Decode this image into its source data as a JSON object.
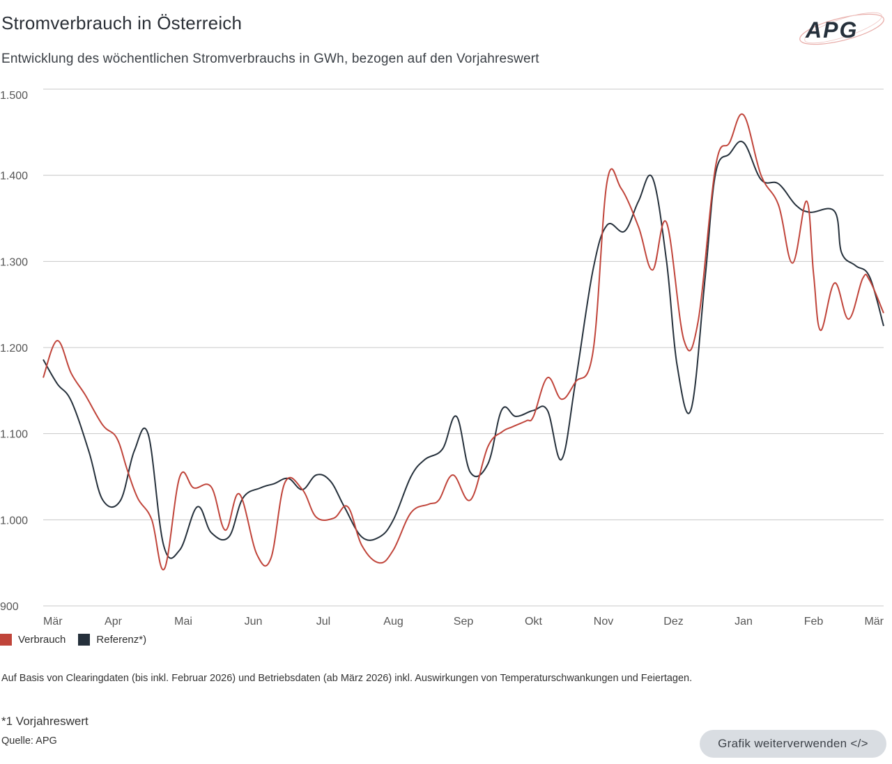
{
  "header": {
    "title": "Stromverbrauch in Österreich",
    "subtitle": "Entwicklung des wöchentlichen Stromverbrauchs in GWh, bezogen auf den Vorjahreswert",
    "logo_text": "APG"
  },
  "colors": {
    "verbrauch": "#c0443a",
    "referenz": "#25303b",
    "grid": "#c8c8c8",
    "axis_text": "#555555"
  },
  "chart_data": {
    "type": "line",
    "title": "Stromverbrauch in Österreich",
    "ylabel": "",
    "xlabel": "",
    "ylim": [
      900,
      1500
    ],
    "yticks": [
      900,
      1000,
      1100,
      1200,
      1300,
      1400,
      1500
    ],
    "ytick_labels": [
      "900",
      "1.000",
      "1.100",
      "1.200",
      "1.300",
      "1.400",
      "1.500"
    ],
    "x_range": [
      0,
      12
    ],
    "xticks": [
      0,
      1,
      2,
      3,
      4,
      5,
      6,
      7,
      8,
      9,
      10,
      11,
      12
    ],
    "xtick_labels": [
      "Mär",
      "Apr",
      "Mai",
      "Jun",
      "Jul",
      "Aug",
      "Sep",
      "Okt",
      "Nov",
      "Dez",
      "Jan",
      "Feb",
      "Mär"
    ],
    "grid": true,
    "legend_position": "bottom-left",
    "series": [
      {
        "name": "Verbrauch",
        "color": "#c0443a",
        "points": [
          [
            0.0,
            1165
          ],
          [
            0.2,
            1208
          ],
          [
            0.4,
            1170
          ],
          [
            0.6,
            1145
          ],
          [
            0.85,
            1110
          ],
          [
            1.05,
            1095
          ],
          [
            1.2,
            1058
          ],
          [
            1.35,
            1025
          ],
          [
            1.55,
            1000
          ],
          [
            1.73,
            943
          ],
          [
            1.95,
            1050
          ],
          [
            2.15,
            1037
          ],
          [
            2.4,
            1038
          ],
          [
            2.6,
            988
          ],
          [
            2.8,
            1030
          ],
          [
            3.05,
            960
          ],
          [
            3.25,
            955
          ],
          [
            3.45,
            1043
          ],
          [
            3.7,
            1035
          ],
          [
            3.9,
            1003
          ],
          [
            4.15,
            1002
          ],
          [
            4.35,
            1015
          ],
          [
            4.55,
            970
          ],
          [
            4.8,
            950
          ],
          [
            5.0,
            965
          ],
          [
            5.25,
            1008
          ],
          [
            5.5,
            1018
          ],
          [
            5.65,
            1023
          ],
          [
            5.85,
            1052
          ],
          [
            6.1,
            1023
          ],
          [
            6.35,
            1085
          ],
          [
            6.55,
            1102
          ],
          [
            6.7,
            1108
          ],
          [
            6.9,
            1115
          ],
          [
            7.0,
            1120
          ],
          [
            7.2,
            1165
          ],
          [
            7.4,
            1140
          ],
          [
            7.6,
            1160
          ],
          [
            7.85,
            1195
          ],
          [
            8.05,
            1392
          ],
          [
            8.25,
            1385
          ],
          [
            8.5,
            1340
          ],
          [
            8.7,
            1290
          ],
          [
            8.9,
            1345
          ],
          [
            9.15,
            1208
          ],
          [
            9.35,
            1230
          ],
          [
            9.6,
            1410
          ],
          [
            9.8,
            1438
          ],
          [
            10.0,
            1470
          ],
          [
            10.25,
            1400
          ],
          [
            10.5,
            1365
          ],
          [
            10.7,
            1298
          ],
          [
            10.9,
            1370
          ],
          [
            11.0,
            1285
          ],
          [
            11.1,
            1220
          ],
          [
            11.3,
            1275
          ],
          [
            11.5,
            1233
          ],
          [
            11.7,
            1280
          ],
          [
            11.8,
            1278
          ],
          [
            12.0,
            1240
          ]
        ]
      },
      {
        "name": "Referenz*)",
        "color": "#25303b",
        "points": [
          [
            0.0,
            1186
          ],
          [
            0.2,
            1158
          ],
          [
            0.4,
            1138
          ],
          [
            0.65,
            1080
          ],
          [
            0.85,
            1023
          ],
          [
            1.1,
            1022
          ],
          [
            1.3,
            1080
          ],
          [
            1.5,
            1099
          ],
          [
            1.72,
            970
          ],
          [
            1.95,
            965
          ],
          [
            2.2,
            1015
          ],
          [
            2.4,
            985
          ],
          [
            2.65,
            980
          ],
          [
            2.85,
            1025
          ],
          [
            3.1,
            1037
          ],
          [
            3.3,
            1042
          ],
          [
            3.5,
            1048
          ],
          [
            3.7,
            1035
          ],
          [
            3.9,
            1052
          ],
          [
            4.1,
            1045
          ],
          [
            4.3,
            1015
          ],
          [
            4.55,
            980
          ],
          [
            4.8,
            980
          ],
          [
            5.0,
            1000
          ],
          [
            5.25,
            1050
          ],
          [
            5.45,
            1070
          ],
          [
            5.7,
            1082
          ],
          [
            5.9,
            1120
          ],
          [
            6.1,
            1055
          ],
          [
            6.35,
            1065
          ],
          [
            6.55,
            1128
          ],
          [
            6.75,
            1120
          ],
          [
            7.0,
            1127
          ],
          [
            7.2,
            1127
          ],
          [
            7.4,
            1070
          ],
          [
            7.6,
            1160
          ],
          [
            7.85,
            1290
          ],
          [
            8.05,
            1342
          ],
          [
            8.3,
            1335
          ],
          [
            8.5,
            1370
          ],
          [
            8.7,
            1397
          ],
          [
            8.9,
            1300
          ],
          [
            9.05,
            1180
          ],
          [
            9.25,
            1128
          ],
          [
            9.45,
            1280
          ],
          [
            9.6,
            1402
          ],
          [
            9.8,
            1425
          ],
          [
            10.0,
            1438
          ],
          [
            10.25,
            1395
          ],
          [
            10.5,
            1390
          ],
          [
            10.75,
            1365
          ],
          [
            10.95,
            1357
          ],
          [
            11.3,
            1358
          ],
          [
            11.4,
            1310
          ],
          [
            11.6,
            1295
          ],
          [
            11.8,
            1282
          ],
          [
            12.0,
            1225
          ]
        ]
      }
    ]
  },
  "legend": {
    "items": [
      {
        "label": "Verbrauch",
        "color": "#c0443a"
      },
      {
        "label": "Referenz*)",
        "color": "#25303b"
      }
    ]
  },
  "notes": {
    "basis": "Auf Basis von Clearingdaten (bis inkl. Februar 2026) und Betriebsdaten (ab März 2026) inkl. Auswirkungen von Temperaturschwankungen und Feiertagen.",
    "footnote": "*1 Vorjahreswert",
    "source": "Quelle: APG"
  },
  "actions": {
    "reuse_label": "Grafik weiterverwenden </>"
  }
}
